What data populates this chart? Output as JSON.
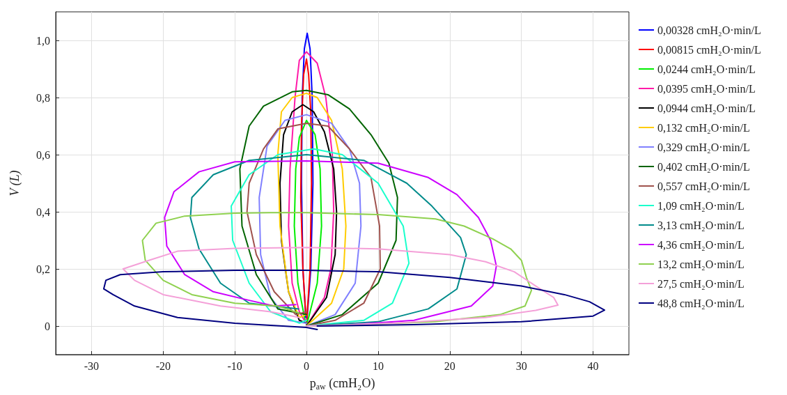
{
  "chart_data": {
    "type": "line",
    "xlabel": "p$_{aw}$ (cmH₂O)",
    "ylabel": "V (L)",
    "xlim": [
      -35,
      45
    ],
    "ylim": [
      -0.1,
      1.1
    ],
    "xticks": [
      -30,
      -20,
      -10,
      0,
      10,
      20,
      30,
      40
    ],
    "yticks": [
      {
        "value": 0,
        "label": "0"
      },
      {
        "value": 0.2,
        "label": "0,2"
      },
      {
        "value": 0.4,
        "label": "0,4"
      },
      {
        "value": 0.6,
        "label": "0,6"
      },
      {
        "value": 0.8,
        "label": "0,8"
      },
      {
        "value": 1.0,
        "label": "1,0"
      }
    ],
    "grid": true,
    "legend": "right",
    "marker": "none",
    "line_style": "solid",
    "series": [
      {
        "name": "0,00328 cmH₂O·min/L",
        "color": "#0000ff",
        "x": [
          0,
          0.6,
          0.9,
          0.8,
          0.5,
          0.1,
          -0.3,
          -0.6,
          -0.7,
          -0.5,
          -0.1
        ],
        "values": [
          0,
          0.2,
          0.5,
          0.8,
          0.97,
          1.025,
          0.97,
          0.8,
          0.5,
          0.2,
          0.03
        ]
      },
      {
        "name": "0,00815 cmH₂O·min/L",
        "color": "#ff0000",
        "x": [
          0,
          0.5,
          0.7,
          0.6,
          0.3,
          0,
          -0.4,
          -0.7,
          -0.8,
          -0.5,
          -0.1
        ],
        "values": [
          0,
          0.2,
          0.5,
          0.75,
          0.88,
          0.935,
          0.88,
          0.7,
          0.45,
          0.2,
          0.04
        ]
      },
      {
        "name": "0,0244 cmH₂O·min/L",
        "color": "#00ee00",
        "x": [
          0,
          1.5,
          2.1,
          1.9,
          1.2,
          0,
          -1,
          -1.5,
          -1.7,
          -1.2,
          -0.2
        ],
        "values": [
          0,
          0.15,
          0.35,
          0.55,
          0.67,
          0.72,
          0.66,
          0.55,
          0.35,
          0.15,
          0.02
        ]
      },
      {
        "name": "0,0395 cmH₂O·min/L",
        "color": "#ff1aa8",
        "x": [
          0,
          2.5,
          3.4,
          3.8,
          3.6,
          2.7,
          1.5,
          0,
          -1,
          -1.6,
          -2.3,
          -2.5,
          -2,
          -1,
          -0.3
        ],
        "values": [
          0,
          0.1,
          0.2,
          0.4,
          0.6,
          0.8,
          0.92,
          0.96,
          0.93,
          0.8,
          0.55,
          0.35,
          0.15,
          0.05,
          0.02
        ]
      },
      {
        "name": "0,0944 cmH₂O·min/L",
        "color": "#000000",
        "x": [
          0,
          2.8,
          4,
          4.2,
          3.8,
          2.5,
          1,
          -0.5,
          -2,
          -3.2,
          -3.7,
          -3.5,
          -2.5,
          -1,
          0
        ],
        "values": [
          0,
          0.1,
          0.25,
          0.4,
          0.55,
          0.68,
          0.75,
          0.775,
          0.75,
          0.67,
          0.5,
          0.3,
          0.12,
          0.02,
          0.01
        ]
      },
      {
        "name": "0,132 cmH₂O·min/L",
        "color": "#ffcc00",
        "x": [
          0,
          3.5,
          5.2,
          5.5,
          5,
          3.5,
          1.5,
          0,
          -2,
          -3.5,
          -4,
          -3.7,
          -2.5,
          -1,
          0
        ],
        "values": [
          0,
          0.08,
          0.2,
          0.35,
          0.55,
          0.72,
          0.8,
          0.815,
          0.8,
          0.75,
          0.6,
          0.35,
          0.12,
          0.03,
          0.04
        ]
      },
      {
        "name": "0,329 cmH₂O·min/L",
        "color": "#8080ff",
        "x": [
          0,
          4,
          6.8,
          7.6,
          7.4,
          6,
          3.5,
          0,
          -3,
          -5.5,
          -6.6,
          -6.4,
          -5,
          -2.5,
          0
        ],
        "values": [
          0,
          0.04,
          0.15,
          0.35,
          0.5,
          0.62,
          0.71,
          0.74,
          0.72,
          0.63,
          0.45,
          0.25,
          0.1,
          0.02,
          0.01
        ]
      },
      {
        "name": "0,402 cmH₂O·min/L",
        "color": "#006400",
        "x": [
          0,
          5,
          10,
          12.5,
          12.7,
          11.5,
          9,
          6,
          3,
          0,
          -2,
          -6,
          -8,
          -9.3,
          -9,
          -7,
          -4,
          0
        ],
        "values": [
          0,
          0.04,
          0.15,
          0.3,
          0.45,
          0.57,
          0.67,
          0.76,
          0.81,
          0.825,
          0.82,
          0.77,
          0.7,
          0.55,
          0.35,
          0.18,
          0.06,
          0.04
        ]
      },
      {
        "name": "0,557 cmH₂O·min/L",
        "color": "#a0524d",
        "x": [
          0,
          4,
          8,
          10.3,
          10.2,
          9,
          6,
          3,
          0,
          -4,
          -6,
          -8,
          -8.3,
          -7,
          -4.5,
          -1.5,
          0
        ],
        "values": [
          0,
          0.02,
          0.08,
          0.2,
          0.35,
          0.52,
          0.62,
          0.7,
          0.71,
          0.69,
          0.62,
          0.5,
          0.4,
          0.25,
          0.12,
          0.04,
          0.05
        ]
      },
      {
        "name": "1,09 cmH₂O·min/L",
        "color": "#1affcc",
        "x": [
          0,
          8,
          12,
          14.3,
          13.5,
          10,
          5,
          1,
          -4,
          -8,
          -10.5,
          -10.3,
          -8,
          -5,
          -1,
          0
        ],
        "values": [
          0,
          0.02,
          0.08,
          0.22,
          0.35,
          0.5,
          0.6,
          0.62,
          0.6,
          0.53,
          0.42,
          0.3,
          0.15,
          0.05,
          0.01,
          0.02
        ]
      },
      {
        "name": "3,13 cmH₂O·min/L",
        "color": "#008b8b",
        "x": [
          0,
          10,
          17,
          21,
          22.3,
          21.5,
          17.5,
          14,
          8,
          0,
          -8,
          -13,
          -16,
          -16.2,
          -15,
          -12,
          -8,
          -1.1
        ],
        "values": [
          0,
          0.015,
          0.06,
          0.13,
          0.25,
          0.31,
          0.42,
          0.5,
          0.58,
          0.6,
          0.58,
          0.53,
          0.45,
          0.38,
          0.27,
          0.15,
          0.08,
          0.06
        ]
      },
      {
        "name": "4,36 cmH₂O·min/L",
        "color": "#cc00ff",
        "x": [
          0,
          5,
          15,
          23,
          26,
          26.5,
          25.7,
          24,
          21,
          17,
          10,
          0,
          -10,
          -15,
          -18.5,
          -19.8,
          -19.5,
          -17,
          -13,
          -8,
          -4.5,
          -1.5
        ],
        "values": [
          0,
          0.003,
          0.02,
          0.07,
          0.14,
          0.21,
          0.3,
          0.38,
          0.46,
          0.52,
          0.57,
          0.578,
          0.575,
          0.54,
          0.47,
          0.38,
          0.28,
          0.18,
          0.12,
          0.09,
          0.07,
          0.075
        ]
      },
      {
        "name": "13,2 cmH₂O·min/L",
        "color": "#8fd14f",
        "x": [
          0,
          5,
          18,
          27,
          30.5,
          31.4,
          30.7,
          30,
          28.5,
          26,
          22,
          18,
          10,
          0,
          -5,
          -10,
          -17,
          -21,
          -22.9,
          -22.5,
          -20,
          -16,
          -10,
          -4,
          -1
        ],
        "values": [
          0,
          0.003,
          0.015,
          0.04,
          0.07,
          0.125,
          0.17,
          0.23,
          0.27,
          0.305,
          0.35,
          0.375,
          0.39,
          0.397,
          0.397,
          0.395,
          0.385,
          0.36,
          0.3,
          0.23,
          0.16,
          0.11,
          0.08,
          0.07,
          0.045
        ]
      },
      {
        "name": "27,5 cmH₂O·min/L",
        "color": "#f4a0d8",
        "x": [
          0,
          12,
          25,
          32,
          35.1,
          34.5,
          32,
          29,
          25,
          20,
          10,
          0,
          -10,
          -18,
          -22,
          -25.6,
          -24,
          -20,
          -12,
          -5,
          -1
        ],
        "values": [
          0,
          0.01,
          0.03,
          0.055,
          0.073,
          0.1,
          0.14,
          0.19,
          0.225,
          0.25,
          0.27,
          0.275,
          0.272,
          0.262,
          0.23,
          0.2,
          0.16,
          0.11,
          0.07,
          0.05,
          0.03
        ]
      },
      {
        "name": "48,8 cmH₂O·min/L",
        "color": "#000080",
        "x": [
          1.5,
          15,
          30,
          40,
          41.6,
          39.5,
          36,
          30,
          20,
          10,
          0,
          -10,
          -20,
          -26,
          -28,
          -28.3,
          -27,
          -24,
          -18,
          -10,
          0,
          1.5
        ],
        "values": [
          0,
          0.005,
          0.015,
          0.035,
          0.056,
          0.085,
          0.11,
          0.14,
          0.17,
          0.19,
          0.195,
          0.195,
          0.19,
          0.18,
          0.16,
          0.13,
          0.11,
          0.07,
          0.03,
          0.01,
          -0.005,
          -0.012
        ]
      }
    ]
  }
}
